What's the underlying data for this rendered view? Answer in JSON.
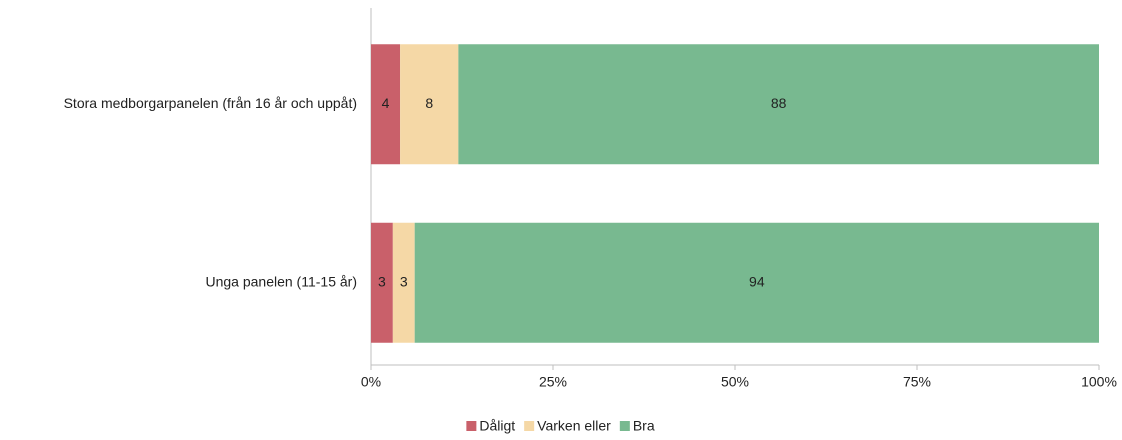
{
  "chart_data": {
    "type": "bar",
    "orientation": "horizontal",
    "stacked": true,
    "categories": [
      "Stora medborgarpanelen (från 16 år och uppåt)",
      "Unga panelen (11-15 år)"
    ],
    "series": [
      {
        "name": "Dåligt",
        "color": "#c9606a",
        "values": [
          4,
          3
        ]
      },
      {
        "name": "Varken eller",
        "color": "#f5d8a6",
        "values": [
          8,
          3
        ]
      },
      {
        "name": "Bra",
        "color": "#78b990",
        "values": [
          88,
          94
        ]
      }
    ],
    "xlim": [
      0,
      100
    ],
    "xticks": [
      {
        "value": 0,
        "label": "0%"
      },
      {
        "value": 25,
        "label": "25%"
      },
      {
        "value": 50,
        "label": "50%"
      },
      {
        "value": 75,
        "label": "75%"
      },
      {
        "value": 100,
        "label": "100%"
      }
    ],
    "grid": false,
    "legend": "bottom"
  }
}
